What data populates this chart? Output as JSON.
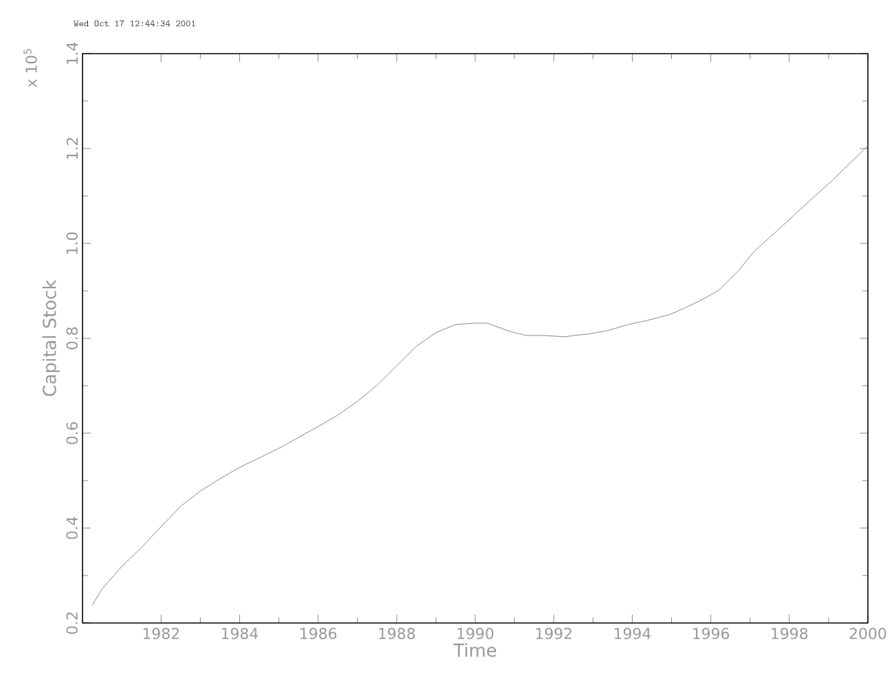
{
  "chart_data": {
    "type": "line",
    "xlabel": "Time",
    "ylabel": "Capital Stock",
    "annotations": [
      "Wed Oct 17 12:44:34 2001",
      "x 10$^{5}$"
    ],
    "xlim": [
      1980,
      2000
    ],
    "ylim": [
      0.2,
      1.4
    ],
    "xticks": [
      1982,
      1984,
      1986,
      1988,
      1990,
      1992,
      1994,
      1996,
      1998,
      2000
    ],
    "yticks": [
      0.2,
      0.4,
      0.6,
      0.8,
      {
        "value": 1,
        "label": "1.0"
      },
      1.2,
      1.4
    ],
    "series": [
      {
        "color": "#888888",
        "x": [
          1980.25,
          1980.5,
          1981,
          1981.5,
          1982,
          1982.5,
          1983,
          1983.5,
          1984,
          1984.5,
          1985,
          1985.5,
          1986,
          1986.5,
          1987,
          1987.5,
          1988,
          1988.5,
          1989,
          1989.5,
          1990,
          1990.3,
          1990.6,
          1990.9,
          1991.3,
          1991.75,
          1992.3,
          1992.5,
          1992.9,
          1993.4,
          1993.9,
          1994.4,
          1994.9,
          1995.1,
          1995.7,
          1996.2,
          1996.7,
          1997.1,
          1997.6,
          1998.1,
          1998.6,
          1999.1,
          2000
        ],
        "values": [
          0.238,
          0.272,
          0.319,
          0.359,
          0.403,
          0.446,
          0.478,
          0.504,
          0.528,
          0.548,
          0.568,
          0.591,
          0.614,
          0.638,
          0.667,
          0.701,
          0.742,
          0.783,
          0.812,
          0.829,
          0.832,
          0.832,
          0.823,
          0.814,
          0.806,
          0.806,
          0.803,
          0.806,
          0.809,
          0.817,
          0.829,
          0.838,
          0.849,
          0.855,
          0.878,
          0.901,
          0.942,
          0.983,
          1.02,
          1.058,
          1.096,
          1.133,
          1.206
        ]
      }
    ]
  }
}
